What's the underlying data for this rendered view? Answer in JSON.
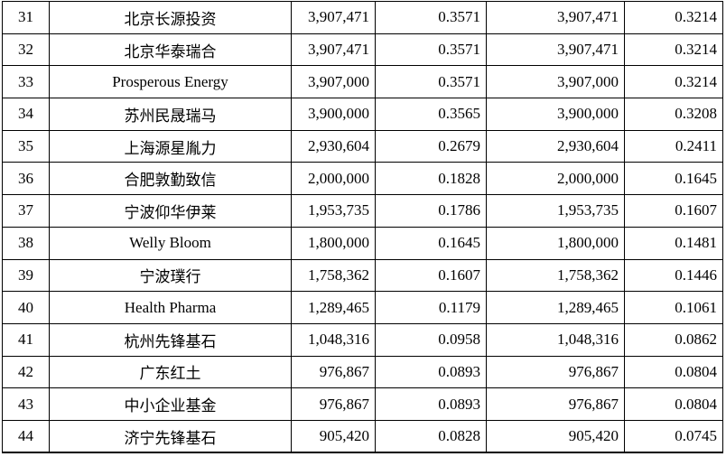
{
  "table": {
    "rows": [
      {
        "no": "31",
        "name": "北京长源投资",
        "shares_before": "3,907,471",
        "ratio_before": "0.3571",
        "shares_after": "3,907,471",
        "ratio_after": "0.3214"
      },
      {
        "no": "32",
        "name": "北京华泰瑞合",
        "shares_before": "3,907,471",
        "ratio_before": "0.3571",
        "shares_after": "3,907,471",
        "ratio_after": "0.3214"
      },
      {
        "no": "33",
        "name": "Prosperous Energy",
        "shares_before": "3,907,000",
        "ratio_before": "0.3571",
        "shares_after": "3,907,000",
        "ratio_after": "0.3214"
      },
      {
        "no": "34",
        "name": "苏州民晟瑞马",
        "shares_before": "3,900,000",
        "ratio_before": "0.3565",
        "shares_after": "3,900,000",
        "ratio_after": "0.3208"
      },
      {
        "no": "35",
        "name": "上海源星胤力",
        "shares_before": "2,930,604",
        "ratio_before": "0.2679",
        "shares_after": "2,930,604",
        "ratio_after": "0.2411"
      },
      {
        "no": "36",
        "name": "合肥敦勤致信",
        "shares_before": "2,000,000",
        "ratio_before": "0.1828",
        "shares_after": "2,000,000",
        "ratio_after": "0.1645"
      },
      {
        "no": "37",
        "name": "宁波仰华伊莱",
        "shares_before": "1,953,735",
        "ratio_before": "0.1786",
        "shares_after": "1,953,735",
        "ratio_after": "0.1607"
      },
      {
        "no": "38",
        "name": "Welly Bloom",
        "shares_before": "1,800,000",
        "ratio_before": "0.1645",
        "shares_after": "1,800,000",
        "ratio_after": "0.1481"
      },
      {
        "no": "39",
        "name": "宁波璞行",
        "shares_before": "1,758,362",
        "ratio_before": "0.1607",
        "shares_after": "1,758,362",
        "ratio_after": "0.1446"
      },
      {
        "no": "40",
        "name": "Health Pharma",
        "shares_before": "1,289,465",
        "ratio_before": "0.1179",
        "shares_after": "1,289,465",
        "ratio_after": "0.1061"
      },
      {
        "no": "41",
        "name": "杭州先锋基石",
        "shares_before": "1,048,316",
        "ratio_before": "0.0958",
        "shares_after": "1,048,316",
        "ratio_after": "0.0862"
      },
      {
        "no": "42",
        "name": "广东红土",
        "shares_before": "976,867",
        "ratio_before": "0.0893",
        "shares_after": "976,867",
        "ratio_after": "0.0804"
      },
      {
        "no": "43",
        "name": "中小企业基金",
        "shares_before": "976,867",
        "ratio_before": "0.0893",
        "shares_after": "976,867",
        "ratio_after": "0.0804"
      },
      {
        "no": "44",
        "name": "济宁先锋基石",
        "shares_before": "905,420",
        "ratio_before": "0.0828",
        "shares_after": "905,420",
        "ratio_after": "0.0745"
      }
    ]
  }
}
